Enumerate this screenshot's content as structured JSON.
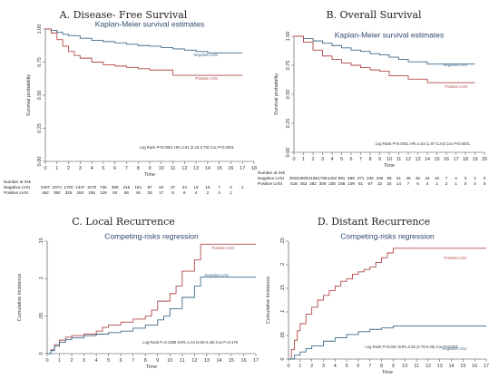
{
  "colors": {
    "negative": "#3e6a8a",
    "positive": "#b24a4a",
    "title": "#2f4a6e",
    "axis": "#444444"
  },
  "chart_data": [
    {
      "id": "A",
      "type": "line",
      "title": "A. Disease- Free Survival",
      "subtitle": "Kaplan-Meier survival estimates",
      "xlabel": "Time",
      "ylabel": "Survival probability",
      "xlim": [
        0,
        18
      ],
      "ylim": [
        0,
        1
      ],
      "xticks": [
        0,
        1,
        2,
        3,
        4,
        5,
        6,
        7,
        8,
        9,
        10,
        11,
        12,
        13,
        14,
        15,
        16,
        17,
        18
      ],
      "yticks": [
        0,
        0.25,
        0.5,
        0.75,
        1
      ],
      "ytick_labels": [
        "0.00",
        "0.25",
        "0.50",
        "0.75",
        "1.00"
      ],
      "grid": false,
      "annotation": "Log Rank P<0.0001   HR=2.91 (2.23-3.79)   Cox P<0.0001",
      "series": [
        {
          "name": "Negative LVSI",
          "step": true,
          "x": [
            0,
            0.5,
            1,
            1.5,
            2,
            3,
            4,
            5,
            6,
            7,
            8,
            9,
            10,
            11,
            12,
            13,
            14,
            15,
            16,
            17
          ],
          "y": [
            1,
            0.99,
            0.975,
            0.96,
            0.95,
            0.93,
            0.915,
            0.905,
            0.895,
            0.885,
            0.875,
            0.87,
            0.86,
            0.85,
            0.84,
            0.83,
            0.82,
            0.82,
            0.82,
            0.82
          ]
        },
        {
          "name": "Positive LVSI",
          "step": true,
          "x": [
            0,
            0.5,
            1,
            1.5,
            2,
            2.5,
            3,
            4,
            5,
            6,
            7,
            8,
            9,
            10,
            11,
            12,
            13,
            14,
            15,
            16,
            17
          ],
          "y": [
            1,
            0.97,
            0.92,
            0.87,
            0.83,
            0.8,
            0.78,
            0.75,
            0.73,
            0.72,
            0.71,
            0.7,
            0.69,
            0.69,
            0.65,
            0.65,
            0.65,
            0.65,
            0.65,
            0.65,
            0.65
          ]
        }
      ],
      "risk_table": {
        "title": "Number at risk",
        "rows": [
          {
            "label": "Negative LVSI",
            "values": [
              "2407",
              "2074",
              "1700",
              "1347",
              "1070",
              "726",
              "389",
              "245",
              "154",
              "97",
              "62",
              "37",
              "24",
              "15",
              "10",
              "7",
              "3",
              "1"
            ]
          },
          {
            "label": "Positive LVSI",
            "values": [
              "462",
              "392",
              "325",
              "260",
              "195",
              "139",
              "93",
              "66",
              "46",
              "25",
              "17",
              "8",
              "6",
              "4",
              "2",
              "2",
              "1",
              ""
            ]
          }
        ]
      }
    },
    {
      "id": "B",
      "type": "line",
      "title": "B. Overall Survival",
      "subtitle": "Kaplan-Meier survival estimates",
      "xlabel": "Time",
      "ylabel": "Survival probability",
      "xlim": [
        0,
        20
      ],
      "ylim": [
        0,
        1
      ],
      "xticks": [
        0,
        1,
        2,
        3,
        4,
        5,
        6,
        7,
        8,
        9,
        10,
        11,
        12,
        13,
        14,
        15,
        16,
        17,
        18,
        19,
        20
      ],
      "yticks": [
        0,
        0.25,
        0.5,
        0.75,
        1
      ],
      "ytick_labels": [
        "0.00",
        "0.25",
        "0.50",
        "0.75",
        "1.00"
      ],
      "grid": false,
      "annotation": "Log Rank P<0.0001   HR=2.53 (1.97-3.24)   Cox P<0.0001",
      "series": [
        {
          "name": "Negative LVSI",
          "step": true,
          "x": [
            0,
            1,
            2,
            3,
            4,
            5,
            6,
            7,
            8,
            9,
            10,
            11,
            12,
            13,
            14,
            15,
            16,
            17,
            18,
            19
          ],
          "y": [
            1,
            0.98,
            0.96,
            0.94,
            0.92,
            0.9,
            0.88,
            0.87,
            0.85,
            0.84,
            0.82,
            0.8,
            0.78,
            0.78,
            0.76,
            0.76,
            0.76,
            0.76,
            0.76,
            0.76
          ]
        },
        {
          "name": "Positive LVSI",
          "step": true,
          "x": [
            0,
            1,
            2,
            3,
            4,
            5,
            6,
            7,
            8,
            9,
            10,
            11,
            12,
            13,
            14,
            15,
            16,
            17,
            18,
            19
          ],
          "y": [
            1,
            0.95,
            0.88,
            0.83,
            0.8,
            0.77,
            0.75,
            0.73,
            0.71,
            0.7,
            0.66,
            0.66,
            0.63,
            0.63,
            0.6,
            0.6,
            0.6,
            0.6,
            0.6,
            0.6
          ]
        }
      ],
      "risk_table": {
        "title": "Number at risk",
        "rows": [
          {
            "label": "Negative LVSI",
            "values": [
              "3020",
              "2805",
              "2196",
              "1768",
              "1403",
              "991",
              "569",
              "371",
              "246",
              "156",
              "98",
              "61",
              "40",
              "30",
              "24",
              "15",
              "7",
              "4",
              "3",
              "2",
              "0"
            ]
          },
          {
            "label": "Positive LVSI",
            "values": [
              "516",
              "452",
              "382",
              "308",
              "238",
              "168",
              "109",
              "81",
              "57",
              "32",
              "24",
              "14",
              "7",
              "6",
              "4",
              "2",
              "2",
              "1",
              "0",
              "0",
              "0"
            ]
          }
        ]
      }
    },
    {
      "id": "C",
      "type": "line",
      "title": "C. Local Recurrence",
      "subtitle": "Competing-risks regression",
      "xlabel": "Time",
      "ylabel": "Cumulative Incidence",
      "xlim": [
        0,
        17
      ],
      "ylim": [
        0,
        0.15
      ],
      "xticks": [
        0,
        1,
        2,
        3,
        4,
        5,
        6,
        7,
        8,
        9,
        10,
        11,
        12,
        13,
        14,
        15,
        16,
        17
      ],
      "yticks": [
        0,
        0.05,
        0.1,
        0.15
      ],
      "ytick_labels": [
        "0",
        ".05",
        ".1",
        ".15"
      ],
      "grid": false,
      "annotation": "Log Rank P=0.1088   SHR=1.44 (0.90-2.46)   Cox P=0.176",
      "series": [
        {
          "name": "Positive LVSI",
          "step": true,
          "x": [
            0,
            0.3,
            0.6,
            1,
            1.5,
            2,
            3,
            4,
            4.5,
            5,
            6,
            7,
            8,
            8.5,
            9,
            10,
            10.5,
            11,
            12,
            12.5,
            17
          ],
          "y": [
            0,
            0.005,
            0.012,
            0.018,
            0.022,
            0.024,
            0.026,
            0.03,
            0.035,
            0.038,
            0.042,
            0.046,
            0.05,
            0.058,
            0.07,
            0.08,
            0.09,
            0.11,
            0.125,
            0.146,
            0.146
          ]
        },
        {
          "name": "Negative LVSI",
          "step": true,
          "x": [
            0,
            0.3,
            0.6,
            1,
            1.5,
            2,
            3,
            4,
            5,
            6,
            7,
            8,
            9,
            9.5,
            10,
            11,
            12,
            12.5,
            17
          ],
          "y": [
            0,
            0.004,
            0.01,
            0.015,
            0.019,
            0.021,
            0.024,
            0.026,
            0.028,
            0.03,
            0.034,
            0.038,
            0.045,
            0.05,
            0.06,
            0.075,
            0.09,
            0.102,
            0.102
          ]
        }
      ]
    },
    {
      "id": "D",
      "type": "line",
      "title": "D. Distant Recurrence",
      "subtitle": "Competing-risks regression",
      "xlabel": "Time",
      "ylabel": "Cumulative Incidence",
      "xlim": [
        0,
        17
      ],
      "ylim": [
        0,
        0.25
      ],
      "xticks": [
        0,
        1,
        2,
        3,
        4,
        5,
        6,
        7,
        8,
        9,
        10,
        11,
        12,
        13,
        14,
        15,
        16,
        17
      ],
      "yticks": [
        0,
        0.05,
        0.1,
        0.15,
        0.2,
        0.25
      ],
      "ytick_labels": [
        "0",
        ".05",
        ".1",
        ".15",
        ".2",
        ".25"
      ],
      "grid": false,
      "annotation": "Log Rank P<0.001   SHR=3.82 (2.79-5.26)   Cox P<0.001",
      "series": [
        {
          "name": "Positive LVSI",
          "step": true,
          "x": [
            0,
            0.25,
            0.5,
            0.75,
            1,
            1.5,
            2,
            2.5,
            3,
            3.5,
            4,
            4.5,
            5,
            5.5,
            6,
            6.5,
            7,
            7.5,
            8,
            8.5,
            9,
            17
          ],
          "y": [
            0,
            0.02,
            0.04,
            0.06,
            0.075,
            0.095,
            0.11,
            0.125,
            0.135,
            0.145,
            0.155,
            0.165,
            0.17,
            0.18,
            0.185,
            0.19,
            0.195,
            0.205,
            0.215,
            0.225,
            0.235,
            0.235
          ]
        },
        {
          "name": "Negative LVSI",
          "step": true,
          "x": [
            0,
            0.5,
            1,
            1.5,
            2,
            3,
            4,
            5,
            6,
            7,
            8,
            9,
            17
          ],
          "y": [
            0,
            0.008,
            0.015,
            0.022,
            0.028,
            0.038,
            0.045,
            0.052,
            0.058,
            0.063,
            0.066,
            0.07,
            0.07
          ]
        }
      ]
    }
  ]
}
